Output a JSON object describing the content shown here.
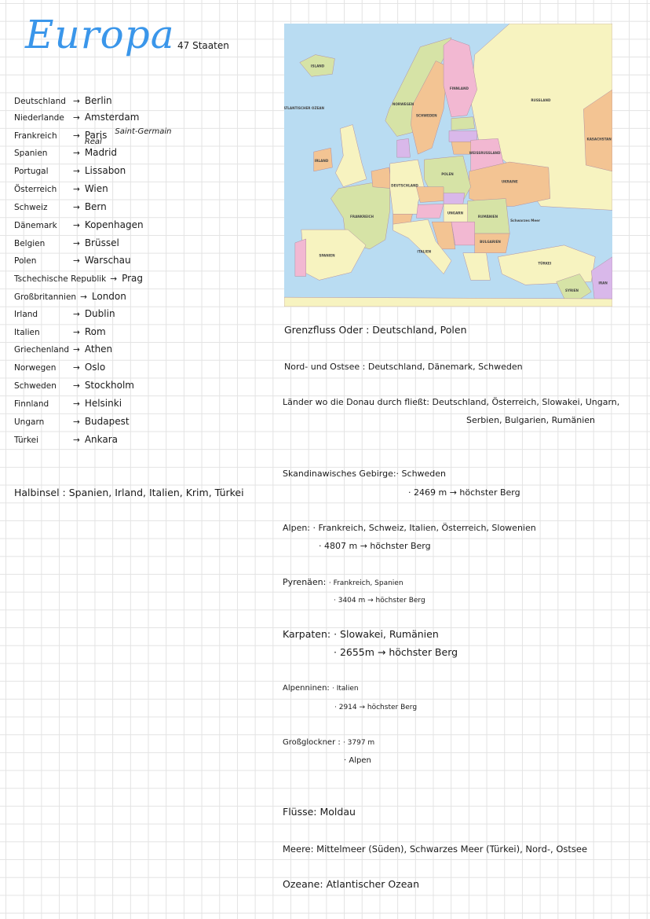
{
  "header": {
    "title": "Europa",
    "subtitle": "47 Staaten",
    "title_color": "#3a96ea"
  },
  "capitals": [
    {
      "country": "Deutschland",
      "capital": "Berlin"
    },
    {
      "country": "Niederlande",
      "capital": "Amsterdam"
    },
    {
      "country": "Frankreich",
      "capital": "Paris",
      "note": "Saint-Germain"
    },
    {
      "country": "Spanien",
      "capital": "Madrid",
      "note": "Real"
    },
    {
      "country": "Portugal",
      "capital": "Lissabon"
    },
    {
      "country": "Österreich",
      "capital": "Wien"
    },
    {
      "country": "Schweiz",
      "capital": "Bern"
    },
    {
      "country": "Dänemark",
      "capital": "Kopenhagen"
    },
    {
      "country": "Belgien",
      "capital": "Brüssel"
    },
    {
      "country": "Polen",
      "capital": "Warschau"
    },
    {
      "country": "Tschechische Republik",
      "capital": "Prag"
    },
    {
      "country": "Großbritannien",
      "capital": "London"
    },
    {
      "country": "Irland",
      "capital": "Dublin"
    },
    {
      "country": "Italien",
      "capital": "Rom"
    },
    {
      "country": "Griechenland",
      "capital": "Athen"
    },
    {
      "country": "Norwegen",
      "capital": "Oslo"
    },
    {
      "country": "Schweden",
      "capital": "Stockholm"
    },
    {
      "country": "Finnland",
      "capital": "Helsinki"
    },
    {
      "country": "Ungarn",
      "capital": "Budapest"
    },
    {
      "country": "Türkei",
      "capital": "Ankara"
    }
  ],
  "arrow": "→",
  "halbinsel": {
    "label": "Halbinsel :",
    "value": "Spanien, Irland, Italien, Krim, Türkei"
  },
  "notes": {
    "grenzfluss": {
      "label": "Grenzfluss Oder :",
      "value": "Deutschland, Polen"
    },
    "nordostsee": {
      "label": "Nord- und Ostsee :",
      "value": "Deutschland, Dänemark, Schweden"
    },
    "donau": {
      "label": "Länder wo die Donau durch fließt:",
      "line1": "Deutschland, Österreich, Slowakei, Ungarn,",
      "line2": "Serbien, Bulgarien, Rumänien"
    },
    "skandinavisch": {
      "label": "Skandinawisches Gebirge:",
      "countries": "· Schweden",
      "height": "· 2469 m → höchster Berg"
    },
    "alpen": {
      "label": "Alpen:",
      "countries": "· Frankreich, Schweiz, Italien, Österreich, Slowenien",
      "height": "· 4807 m → höchster Berg"
    },
    "pyrenaeen": {
      "label": "Pyrenäen:",
      "countries": "· Frankreich, Spanien",
      "height": "· 3404 m → höchster Berg"
    },
    "karpaten": {
      "label": "Karpaten:",
      "countries": "· Slowakei, Rumänien",
      "height": "· 2655m → höchster Berg"
    },
    "apenninen": {
      "label": "Alpenninen:",
      "countries": "· Italien",
      "height": "· 2914 → höchster Berg"
    },
    "grossglockner": {
      "label": "Großglockner :",
      "height": "· 3797 m",
      "range": "· Alpen"
    },
    "fluesse": {
      "label": "Flüsse:",
      "value": "Moldau"
    },
    "meere": {
      "label": "Meere:",
      "value": "Mittelmeer (Süden), Schwarzes Meer (Türkei), Nord-, Ostsee"
    },
    "ozeane": {
      "label": "Ozeane:",
      "value": "Atlantischer Ozean"
    }
  },
  "map": {
    "colors": {
      "sea": "#b9dcf2",
      "yellow": "#f7f3c0",
      "green": "#d6e3a6",
      "orange": "#f3c493",
      "pink": "#f2b8d2",
      "purple": "#d9b8ea"
    },
    "labels": [
      "RUSSLAND",
      "FINNLAND",
      "SCHWEDEN",
      "NORWEGEN",
      "ISLAND",
      "IRLAND",
      "POLEN",
      "UKRAINE",
      "DEUTSCHLAND",
      "FRANKREICH",
      "SPANIEN",
      "ITALIEN",
      "TÜRKEI",
      "KASACHSTAN",
      "RUMÄNIEN",
      "BULGARIEN",
      "UNGARN",
      "WEISSRUSSLAND",
      "SYRIEN",
      "IRAN",
      "Schwarzes Meer",
      "ATLANTISCHER OZEAN"
    ]
  }
}
